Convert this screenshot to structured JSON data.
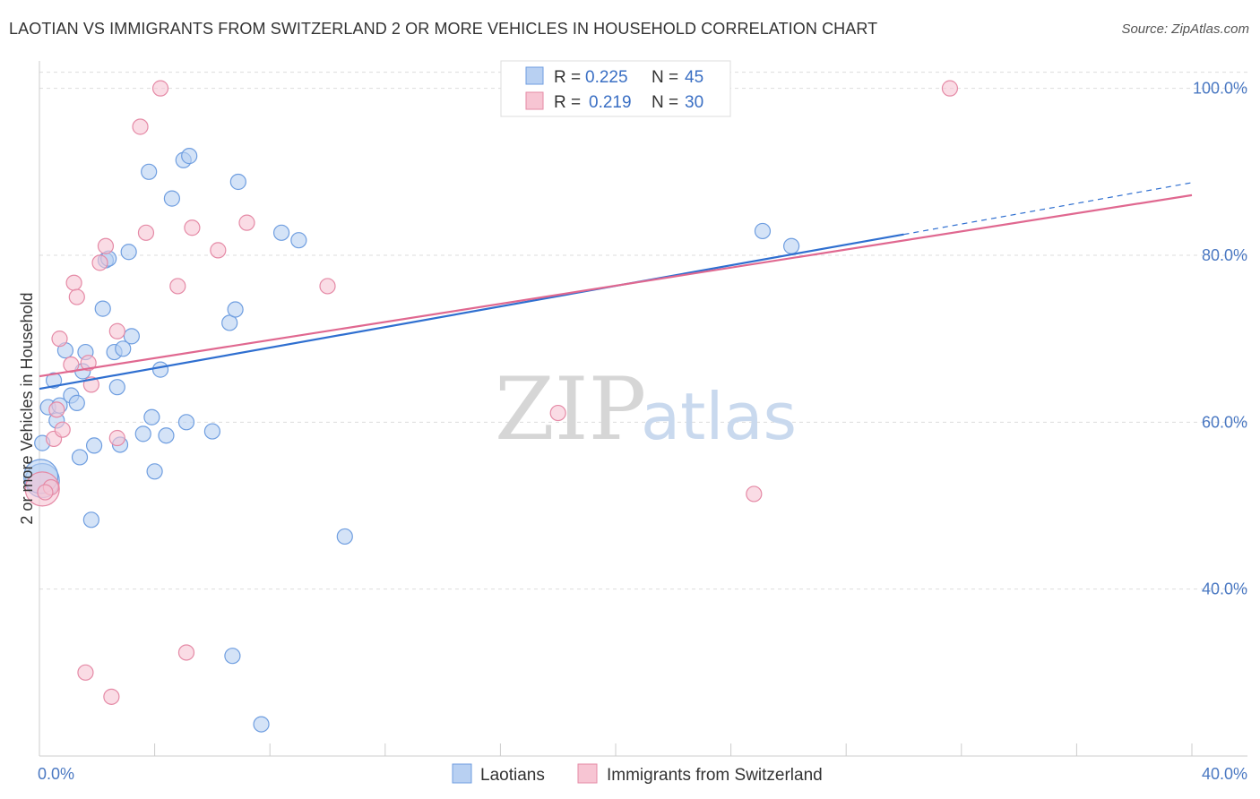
{
  "title": "LAOTIAN VS IMMIGRANTS FROM SWITZERLAND 2 OR MORE VEHICLES IN HOUSEHOLD CORRELATION CHART",
  "source": "Source: ZipAtlas.com",
  "watermark": {
    "zip": "ZIP",
    "atlas": "atlas"
  },
  "colors": {
    "blue_fill": "#b8d0f2",
    "blue_stroke": "#6f9ee0",
    "blue_line": "#2f6fd0",
    "pink_fill": "#f7c5d3",
    "pink_stroke": "#e58aa6",
    "pink_line": "#e06890",
    "tick": "#4a78c2",
    "grid": "#dddddd"
  },
  "legend_top": {
    "rows": [
      {
        "r_label": "R =",
        "r_value": "0.225",
        "n_label": "N =",
        "n_value": "45"
      },
      {
        "r_label": "R =",
        "r_value": "0.219",
        "n_label": "N =",
        "n_value": "30"
      }
    ]
  },
  "legend_bottom": [
    "Laotians",
    "Immigrants from Switzerland"
  ],
  "chart_data": {
    "type": "scatter",
    "title": "LAOTIAN VS IMMIGRANTS FROM SWITZERLAND 2 OR MORE VEHICLES IN HOUSEHOLD CORRELATION CHART",
    "xlabel": "",
    "ylabel": "2 or more Vehicles in Household",
    "xlim": [
      0,
      40
    ],
    "ylim": [
      20,
      102
    ],
    "x_tick_labels": [
      "0.0%",
      "40.0%"
    ],
    "y_ticks": [
      40,
      60,
      80,
      100
    ],
    "y_tick_labels": [
      "40.0%",
      "60.0%",
      "80.0%",
      "100.0%"
    ],
    "grid": true,
    "legend_position": "top-center",
    "series": [
      {
        "name": "Laotians",
        "r": 0.225,
        "n": 45,
        "trend": {
          "x0": 0,
          "y0": 64.0,
          "x1": 30,
          "y1": 82.5,
          "dash_to_x": 40,
          "dash_to_y": 88.7
        },
        "points": [
          [
            0.1,
            53.0
          ],
          [
            0.1,
            57.5
          ],
          [
            0.3,
            61.8
          ],
          [
            0.5,
            65.0
          ],
          [
            0.6,
            60.2
          ],
          [
            0.7,
            62.0
          ],
          [
            0.9,
            68.6
          ],
          [
            1.1,
            63.2
          ],
          [
            1.3,
            62.3
          ],
          [
            1.4,
            55.8
          ],
          [
            1.5,
            66.1
          ],
          [
            1.6,
            68.4
          ],
          [
            1.8,
            48.3
          ],
          [
            1.9,
            57.2
          ],
          [
            2.2,
            73.6
          ],
          [
            2.3,
            79.4
          ],
          [
            2.4,
            79.6
          ],
          [
            2.6,
            68.4
          ],
          [
            2.7,
            64.2
          ],
          [
            2.8,
            57.3
          ],
          [
            2.9,
            68.8
          ],
          [
            3.1,
            80.4
          ],
          [
            3.2,
            70.3
          ],
          [
            3.6,
            58.6
          ],
          [
            3.8,
            90.0
          ],
          [
            3.9,
            60.6
          ],
          [
            4.0,
            54.1
          ],
          [
            4.2,
            66.3
          ],
          [
            4.4,
            58.4
          ],
          [
            4.6,
            86.8
          ],
          [
            5.0,
            91.4
          ],
          [
            5.1,
            60.0
          ],
          [
            5.2,
            91.9
          ],
          [
            6.0,
            58.9
          ],
          [
            6.6,
            71.9
          ],
          [
            6.7,
            32.0
          ],
          [
            6.8,
            73.5
          ],
          [
            6.9,
            88.8
          ],
          [
            7.7,
            23.8
          ],
          [
            8.4,
            82.7
          ],
          [
            9.0,
            81.8
          ],
          [
            10.6,
            46.3
          ],
          [
            25.1,
            82.9
          ],
          [
            26.1,
            81.1
          ],
          [
            0.05,
            53.5
          ]
        ]
      },
      {
        "name": "Immigrants from Switzerland",
        "r": 0.219,
        "n": 30,
        "trend": {
          "x0": 0,
          "y0": 65.5,
          "x1": 40,
          "y1": 87.2
        },
        "points": [
          [
            0.1,
            52.0
          ],
          [
            0.4,
            52.2
          ],
          [
            0.5,
            58.0
          ],
          [
            0.6,
            61.5
          ],
          [
            0.7,
            70.0
          ],
          [
            0.8,
            59.1
          ],
          [
            1.1,
            66.9
          ],
          [
            1.2,
            76.7
          ],
          [
            1.3,
            75.0
          ],
          [
            1.6,
            30.0
          ],
          [
            1.7,
            67.1
          ],
          [
            1.8,
            64.5
          ],
          [
            2.1,
            79.1
          ],
          [
            2.3,
            81.1
          ],
          [
            2.5,
            27.1
          ],
          [
            2.7,
            58.1
          ],
          [
            2.7,
            70.9
          ],
          [
            3.5,
            95.4
          ],
          [
            3.7,
            82.7
          ],
          [
            4.2,
            100.0
          ],
          [
            4.8,
            76.3
          ],
          [
            5.1,
            32.4
          ],
          [
            5.3,
            83.3
          ],
          [
            6.2,
            80.6
          ],
          [
            7.2,
            83.9
          ],
          [
            10.0,
            76.3
          ],
          [
            18.0,
            61.1
          ],
          [
            24.8,
            51.4
          ],
          [
            31.6,
            100.0
          ],
          [
            0.2,
            51.6
          ]
        ]
      }
    ]
  }
}
